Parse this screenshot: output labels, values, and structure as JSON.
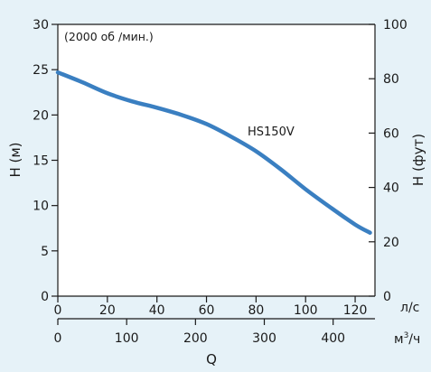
{
  "chart_data": {
    "type": "line",
    "annotation": "(2000 об /мин.)",
    "ylabel_left": "H (м)",
    "ylabel_right": "H (фут)",
    "xlabel": "Q",
    "x_unit_top": "л/с",
    "x_unit_bottom": "м³/ч",
    "x_unit_bottom_base": "м",
    "x_unit_bottom_sup": "3",
    "x_unit_bottom_tail": "/ч",
    "ylim_left": [
      0,
      30
    ],
    "ylim_right": [
      0,
      100
    ],
    "xlim_ls": [
      0,
      128
    ],
    "xlim_m3h": [
      0,
      460.8
    ],
    "y_left_ticks": [
      "0",
      "5",
      "10",
      "15",
      "20",
      "25",
      "30"
    ],
    "y_right_ticks": [
      "0",
      "20",
      "40",
      "60",
      "80",
      "100"
    ],
    "x_ls_ticks": [
      "0",
      "20",
      "40",
      "60",
      "80",
      "100",
      "120"
    ],
    "x_m3h_ticks": [
      "0",
      "100",
      "200",
      "300",
      "400"
    ],
    "grid": false,
    "colors": {
      "line": "#3a7fc1",
      "background": "#e6f2f8",
      "plot": "#ffffff",
      "axis": "#1a1a1a"
    },
    "series": [
      {
        "name": "HS150V",
        "x": [
          0,
          10,
          20,
          30,
          40,
          50,
          60,
          70,
          80,
          90,
          100,
          110,
          120,
          126
        ],
        "y": [
          24.7,
          23.6,
          22.4,
          21.5,
          20.8,
          20.0,
          19.0,
          17.6,
          16.0,
          14.0,
          11.8,
          9.8,
          7.9,
          7.0
        ]
      }
    ]
  }
}
